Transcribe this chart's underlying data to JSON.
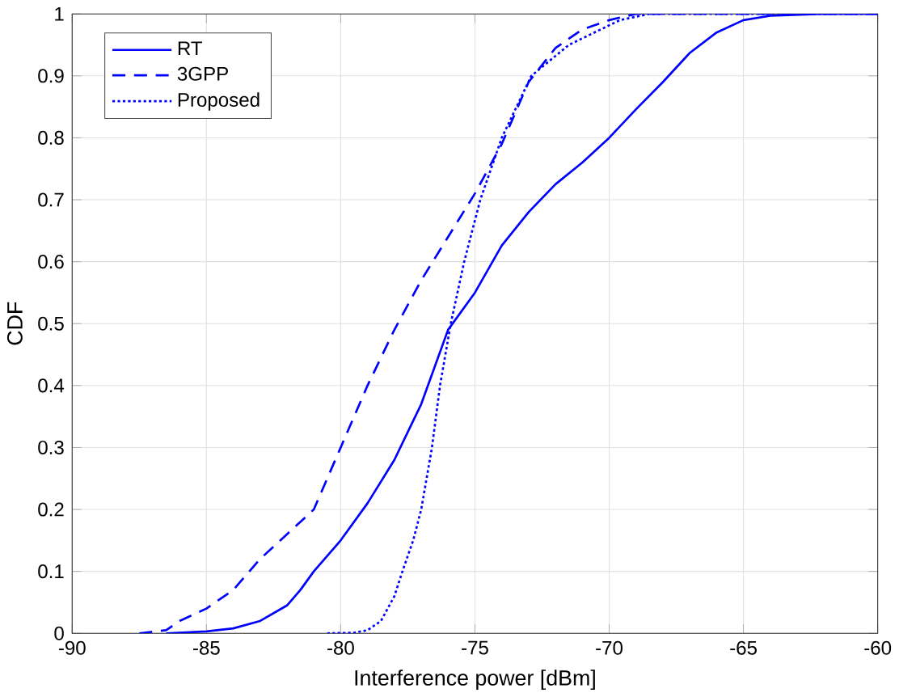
{
  "chart_data": {
    "type": "line",
    "xlabel": "Interference power [dBm]",
    "ylabel": "CDF",
    "xlim": [
      -90,
      -60
    ],
    "ylim": [
      0,
      1
    ],
    "xticks": [
      -90,
      -85,
      -80,
      -75,
      -70,
      -65,
      -60
    ],
    "yticks": [
      0,
      0.1,
      0.2,
      0.3,
      0.4,
      0.5,
      0.6,
      0.7,
      0.8,
      0.9,
      1
    ],
    "grid": true,
    "legend": "top left",
    "series": [
      {
        "name": "RT",
        "color": "#0000ff",
        "line_style": "solid",
        "x": [
          -86.5,
          -85,
          -84,
          -83,
          -82,
          -81.5,
          -81,
          -80,
          -79,
          -78,
          -77,
          -76,
          -75,
          -74,
          -73,
          -72,
          -71,
          -70,
          -69,
          -68,
          -67,
          -66,
          -65,
          -64,
          -62,
          -60
        ],
        "values": [
          0,
          0.003,
          0.008,
          0.02,
          0.045,
          0.07,
          0.1,
          0.15,
          0.21,
          0.28,
          0.37,
          0.49,
          0.55,
          0.626,
          0.68,
          0.725,
          0.76,
          0.8,
          0.846,
          0.89,
          0.937,
          0.97,
          0.99,
          0.997,
          1,
          1
        ]
      },
      {
        "name": "3GPP",
        "color": "#0000ff",
        "line_style": "dashed",
        "x": [
          -87.5,
          -86.5,
          -86,
          -85,
          -84,
          -83,
          -82,
          -81,
          -80.5,
          -80,
          -79,
          -78,
          -77,
          -76,
          -75,
          -74,
          -73,
          -72,
          -71,
          -70,
          -69,
          -60
        ],
        "values": [
          0,
          0.005,
          0.02,
          0.04,
          0.07,
          0.12,
          0.16,
          0.2,
          0.25,
          0.3,
          0.4,
          0.49,
          0.57,
          0.64,
          0.71,
          0.79,
          0.89,
          0.945,
          0.975,
          0.99,
          1,
          1
        ]
      },
      {
        "name": "Proposed",
        "color": "#0000ff",
        "line_style": "dotted",
        "x": [
          -80.5,
          -79.5,
          -79,
          -78.5,
          -78,
          -77.7,
          -77.3,
          -77,
          -76.6,
          -76.3,
          -75.9,
          -75.4,
          -74.8,
          -74,
          -72.9,
          -71.5,
          -69.6,
          -68.5,
          -60
        ],
        "values": [
          0,
          0.001,
          0.005,
          0.02,
          0.06,
          0.1,
          0.15,
          0.2,
          0.3,
          0.4,
          0.5,
          0.6,
          0.7,
          0.8,
          0.9,
          0.95,
          0.99,
          1,
          1
        ]
      }
    ]
  }
}
